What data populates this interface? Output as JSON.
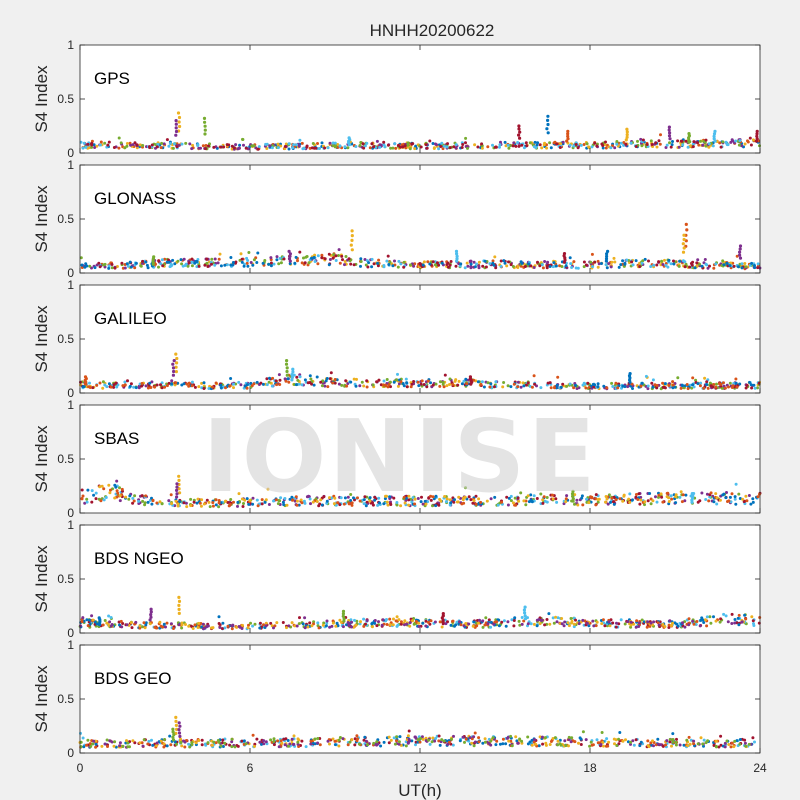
{
  "figure_title": "HNHH20200622",
  "watermark": "IONISE",
  "chart_data": {
    "type": "scatter",
    "title": "HNHH20200622",
    "xlabel": "UT(h)",
    "ylabel": "S4 Index",
    "xlim": [
      0,
      24
    ],
    "ylim": [
      0,
      1
    ],
    "xticks": [
      0,
      6,
      12,
      18,
      24
    ],
    "yticks": [
      0,
      0.5,
      1
    ],
    "ytick_labels": [
      "0",
      "0.5",
      "1"
    ],
    "grid": false,
    "series_colors": [
      "#0072BD",
      "#D95319",
      "#EDB120",
      "#7E2F8E",
      "#77AC30",
      "#4DBEEE",
      "#A2142F"
    ],
    "panels": [
      {
        "label": "GPS",
        "baseline": [
          [
            0,
            0.08
          ],
          [
            2,
            0.08
          ],
          [
            4,
            0.07
          ],
          [
            6,
            0.06
          ],
          [
            8,
            0.07
          ],
          [
            10,
            0.08
          ],
          [
            12,
            0.07
          ],
          [
            15,
            0.08
          ],
          [
            18,
            0.08
          ],
          [
            21,
            0.09
          ],
          [
            24,
            0.1
          ]
        ],
        "spikes": [
          [
            3.5,
            0.37
          ],
          [
            3.4,
            0.3
          ],
          [
            4.4,
            0.32
          ],
          [
            9.5,
            0.14
          ],
          [
            15.5,
            0.25
          ],
          [
            16.5,
            0.34
          ],
          [
            17.2,
            0.2
          ],
          [
            19.3,
            0.22
          ],
          [
            20.8,
            0.24
          ],
          [
            21.5,
            0.18
          ],
          [
            22.4,
            0.2
          ],
          [
            23.9,
            0.2
          ]
        ]
      },
      {
        "label": "GLONASS",
        "baseline": [
          [
            0,
            0.07
          ],
          [
            2,
            0.08
          ],
          [
            3,
            0.1
          ],
          [
            5,
            0.1
          ],
          [
            7,
            0.12
          ],
          [
            9,
            0.14
          ],
          [
            10,
            0.1
          ],
          [
            12,
            0.08
          ],
          [
            15,
            0.09
          ],
          [
            18,
            0.08
          ],
          [
            20,
            0.1
          ],
          [
            22,
            0.08
          ],
          [
            24,
            0.07
          ]
        ],
        "spikes": [
          [
            9.6,
            0.39
          ],
          [
            7.4,
            0.2
          ],
          [
            2.6,
            0.15
          ],
          [
            13.3,
            0.2
          ],
          [
            17.1,
            0.18
          ],
          [
            18.6,
            0.2
          ],
          [
            21.4,
            0.45
          ],
          [
            21.3,
            0.35
          ],
          [
            23.3,
            0.25
          ]
        ]
      },
      {
        "label": "GALILEO",
        "baseline": [
          [
            0,
            0.08
          ],
          [
            2,
            0.08
          ],
          [
            4,
            0.07
          ],
          [
            6,
            0.08
          ],
          [
            7.5,
            0.14
          ],
          [
            9,
            0.1
          ],
          [
            12,
            0.1
          ],
          [
            13.5,
            0.1
          ],
          [
            15,
            0.08
          ],
          [
            18,
            0.07
          ],
          [
            21,
            0.07
          ],
          [
            24,
            0.08
          ]
        ],
        "spikes": [
          [
            3.4,
            0.36
          ],
          [
            3.3,
            0.3
          ],
          [
            7.3,
            0.3
          ],
          [
            7.5,
            0.22
          ],
          [
            13.8,
            0.15
          ],
          [
            19.4,
            0.18
          ],
          [
            0.2,
            0.15
          ]
        ]
      },
      {
        "label": "SBAS",
        "baseline": [
          [
            0,
            0.15
          ],
          [
            1,
            0.22
          ],
          [
            2,
            0.14
          ],
          [
            3,
            0.1
          ],
          [
            5,
            0.1
          ],
          [
            8,
            0.12
          ],
          [
            12,
            0.12
          ],
          [
            16,
            0.13
          ],
          [
            20,
            0.14
          ],
          [
            24,
            0.15
          ]
        ],
        "spikes": [
          [
            3.5,
            0.34
          ],
          [
            3.4,
            0.27
          ],
          [
            17.4,
            0.2
          ],
          [
            21.6,
            0.18
          ]
        ]
      },
      {
        "label": "BDS NGEO",
        "baseline": [
          [
            0,
            0.1
          ],
          [
            2,
            0.08
          ],
          [
            4,
            0.07
          ],
          [
            6,
            0.07
          ],
          [
            8,
            0.08
          ],
          [
            10,
            0.1
          ],
          [
            12,
            0.1
          ],
          [
            14,
            0.09
          ],
          [
            16,
            0.12
          ],
          [
            18,
            0.1
          ],
          [
            21,
            0.09
          ],
          [
            23,
            0.14
          ],
          [
            24,
            0.12
          ]
        ],
        "spikes": [
          [
            3.5,
            0.33
          ],
          [
            2.5,
            0.22
          ],
          [
            9.3,
            0.2
          ],
          [
            15.7,
            0.24
          ],
          [
            12.8,
            0.18
          ],
          [
            0.7,
            0.14
          ]
        ]
      },
      {
        "label": "BDS GEO",
        "baseline": [
          [
            0,
            0.09
          ],
          [
            3,
            0.1
          ],
          [
            6,
            0.1
          ],
          [
            9,
            0.11
          ],
          [
            12,
            0.12
          ],
          [
            15,
            0.12
          ],
          [
            18,
            0.11
          ],
          [
            21,
            0.1
          ],
          [
            24,
            0.1
          ]
        ],
        "spikes": [
          [
            3.4,
            0.33
          ],
          [
            3.5,
            0.28
          ],
          [
            3.3,
            0.22
          ]
        ]
      }
    ]
  }
}
